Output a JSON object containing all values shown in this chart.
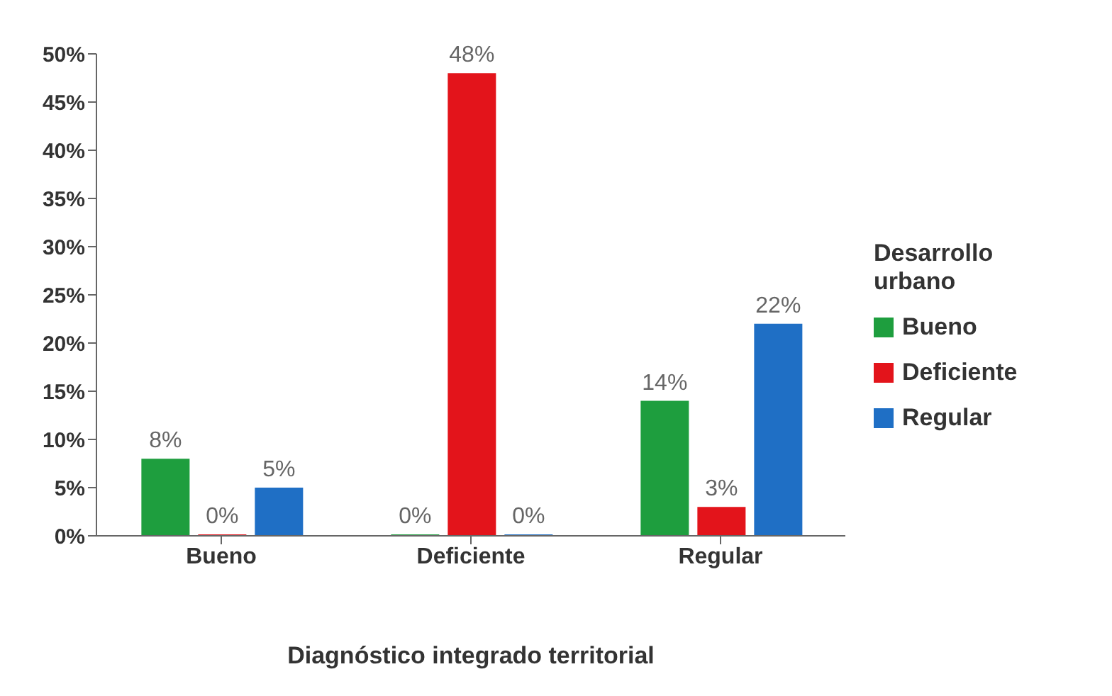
{
  "chart_data": {
    "type": "bar",
    "categories": [
      "Bueno",
      "Deficiente",
      "Regular"
    ],
    "series": [
      {
        "name": "Bueno",
        "color": "#1e9e3e",
        "values": [
          8,
          0,
          14
        ],
        "value_labels": [
          "8%",
          "0%",
          "14%"
        ]
      },
      {
        "name": "Deficiente",
        "color": "#e3141b",
        "values": [
          0,
          48,
          3
        ],
        "value_labels": [
          "0%",
          "48%",
          "3%"
        ]
      },
      {
        "name": "Regular",
        "color": "#1f6fc5",
        "values": [
          5,
          0,
          22
        ],
        "value_labels": [
          "5%",
          "0%",
          "22%"
        ]
      }
    ],
    "xlabel": "Diagnóstico integrado territorial",
    "legend_title": "Desarrollo urbano",
    "legend": "right",
    "ylim": [
      0,
      50
    ],
    "yticks": [
      {
        "value": 0,
        "label": "0%"
      },
      {
        "value": 5,
        "label": "5%"
      },
      {
        "value": 10,
        "label": "10%"
      },
      {
        "value": 15,
        "label": "15%"
      },
      {
        "value": 20,
        "label": "20%"
      },
      {
        "value": 25,
        "label": "25%"
      },
      {
        "value": 30,
        "label": "30%"
      },
      {
        "value": 35,
        "label": "35%"
      },
      {
        "value": 40,
        "label": "40%"
      },
      {
        "value": 45,
        "label": "45%"
      },
      {
        "value": 50,
        "label": "50%"
      }
    ]
  }
}
